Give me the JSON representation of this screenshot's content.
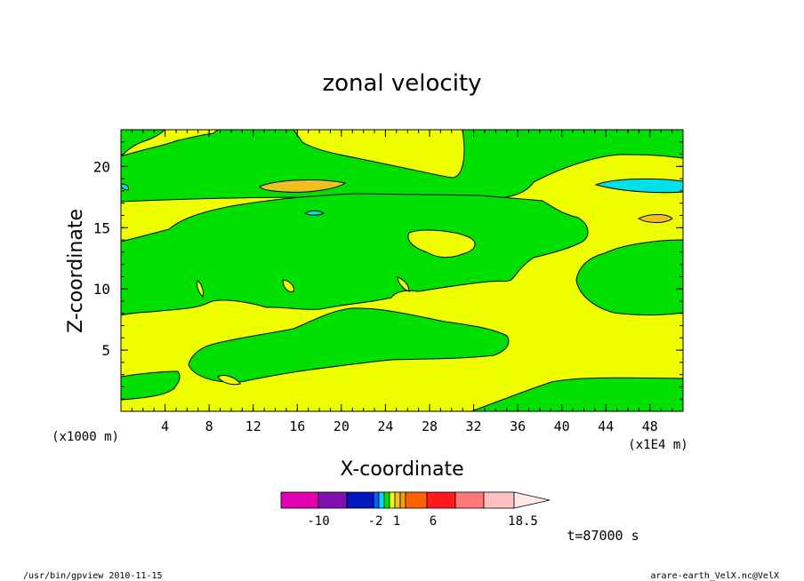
{
  "chart_data": {
    "type": "heatmap",
    "title": "zonal velocity",
    "xlabel": "X-coordinate",
    "ylabel": "Z-coordinate",
    "x_unit": "(x1E4 m)",
    "y_unit": "(x1000 m)",
    "xlim": [
      0,
      51
    ],
    "ylim": [
      0,
      23
    ],
    "x_ticks": [
      "4",
      "8",
      "12",
      "16",
      "20",
      "24",
      "28",
      "32",
      "36",
      "40",
      "44",
      "48"
    ],
    "y_ticks": [
      "5",
      "10",
      "15",
      "20"
    ],
    "time_label": "t=87000 s",
    "colorbar": {
      "tick_labels": [
        "-10",
        "-2",
        "1",
        "6",
        "18.5"
      ],
      "colors": [
        "#e000b0",
        "#8010b0",
        "#0018c0",
        "#0060ff",
        "#00d8ff",
        "#00e000",
        "#f0ff00",
        "#f0c020",
        "#f0a000",
        "#ff6000",
        "#ff1a1a",
        "#ff7878",
        "#ffc0c0",
        "#ffe8e8"
      ]
    },
    "regions": [
      {
        "label": "yellow",
        "color": "#f0ff00"
      },
      {
        "label": "green",
        "color": "#00e000"
      },
      {
        "label": "orange",
        "color": "#f0c020"
      },
      {
        "label": "cyan",
        "color": "#00e0e8"
      }
    ]
  },
  "footer": {
    "left": "/usr/bin/gpview   2010-11-15",
    "right": "arare-earth_VelX.nc@VelX"
  }
}
